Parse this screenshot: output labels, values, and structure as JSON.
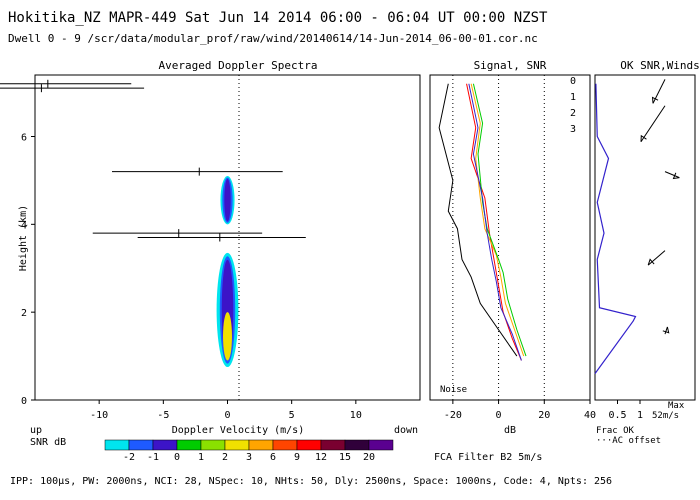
{
  "header": {
    "title": "Hokitika_NZ  MAPR-449  Sat Jun 14 2014 06:00 - 06:04 UT 00:00 NZST",
    "subtitle": "Dwell  0 - 9   /scr/data/modular_prof/raw/wind/20140614/14-Jun-2014_06-00-01.cor.nc"
  },
  "footer": {
    "params": "IPP: 100µs,  PW: 2000ns,  NCI: 28,  NSpec: 10, NHts: 50,  Dly: 2500ns,  Space: 1000ns,  Code: 4,  Npts: 256",
    "fca": "FCA Filter B2  5m/s"
  },
  "chart_data": [
    {
      "type": "heatmap",
      "panel": "spectra",
      "title": "Averaged Doppler Spectra",
      "xlabel": "Doppler Velocity (m/s)",
      "ylabel": "Height (km)",
      "xlim": [
        -15,
        15
      ],
      "ylim": [
        0,
        7.4
      ],
      "xticks": [
        -10,
        -5,
        0,
        5,
        10
      ],
      "yticks": [
        0,
        2,
        4,
        6
      ],
      "left_note": "up",
      "right_note": "down",
      "spectra_blobs": [
        {
          "center_height_km": 4.55,
          "half_height_km": 0.55,
          "layers": [
            [
              "#00e5ee",
              0.55
            ],
            [
              "#1e5aff",
              0.4
            ],
            [
              "#3c14c8",
              0.25
            ]
          ]
        },
        {
          "center_height_km": 2.05,
          "half_height_km": 1.3,
          "layers": [
            [
              "#00e5ee",
              0.85
            ],
            [
              "#1e5aff",
              0.6
            ],
            [
              "#3c14c8",
              0.45
            ]
          ]
        },
        {
          "center_height_km": 1.45,
          "half_height_km": 0.55,
          "layers": [
            [
              "#f0e000",
              0.35
            ]
          ]
        }
      ],
      "velocity_errorbars": [
        {
          "height_km": 5.2,
          "center": -2.2,
          "low": -9,
          "high": 4.3
        },
        {
          "height_km": 3.8,
          "center": -3.8,
          "low": -10.5,
          "high": 2.7
        },
        {
          "height_km": 3.7,
          "center": -0.6,
          "low": -7,
          "high": 6.1
        },
        {
          "height_km": 7.2,
          "center": -14,
          "low": -19,
          "high": -7.5
        },
        {
          "height_km": 7.1,
          "center": -14.5,
          "low": -19,
          "high": -6.5
        }
      ]
    },
    {
      "type": "line",
      "panel": "signal-snr",
      "title": "Signal, SNR",
      "xlabel": "dB",
      "xlim": [
        -30,
        40
      ],
      "xticks": [
        -20,
        0,
        20,
        40
      ],
      "ylim": [
        0,
        7.4
      ],
      "noise_label": "Noise",
      "series": [
        {
          "name": "0",
          "color": "#ff0000",
          "points": [
            [
              10,
              0.9
            ],
            [
              6,
              1.4
            ],
            [
              2,
              2.0
            ],
            [
              0,
              2.6
            ],
            [
              -2,
              3.2
            ],
            [
              -4,
              3.8
            ],
            [
              -6,
              4.6
            ],
            [
              -12,
              5.5
            ],
            [
              -10,
              6.2
            ],
            [
              -14,
              7.2
            ]
          ]
        },
        {
          "name": "1",
          "color": "#ffa500",
          "points": [
            [
              11,
              1.0
            ],
            [
              7,
              1.6
            ],
            [
              3,
              2.2
            ],
            [
              1,
              2.8
            ],
            [
              -1,
              3.3
            ],
            [
              -6,
              3.9
            ],
            [
              -8,
              4.6
            ],
            [
              -10,
              5.5
            ],
            [
              -8,
              6.3
            ],
            [
              -12,
              7.2
            ]
          ]
        },
        {
          "name": "2",
          "color": "#00cc00",
          "points": [
            [
              12,
              1.0
            ],
            [
              8,
              1.6
            ],
            [
              4,
              2.3
            ],
            [
              2,
              2.9
            ],
            [
              0,
              3.2
            ],
            [
              -5,
              3.9
            ],
            [
              -7,
              4.5
            ],
            [
              -9,
              5.6
            ],
            [
              -7,
              6.3
            ],
            [
              -11,
              7.2
            ]
          ]
        },
        {
          "name": "3",
          "color": "#3322cc",
          "points": [
            [
              10,
              0.9
            ],
            [
              6,
              1.5
            ],
            [
              1,
              2.1
            ],
            [
              -1,
              2.7
            ],
            [
              -3,
              3.2
            ],
            [
              -5,
              3.8
            ],
            [
              -7,
              4.6
            ],
            [
              -11,
              5.6
            ],
            [
              -9,
              6.2
            ],
            [
              -13,
              7.2
            ]
          ]
        },
        {
          "name": "signal",
          "color": "#000000",
          "points": [
            [
              8,
              1.0
            ],
            [
              0,
              1.6
            ],
            [
              -8,
              2.2
            ],
            [
              -12,
              2.8
            ],
            [
              -16,
              3.2
            ],
            [
              -18,
              3.9
            ],
            [
              -22,
              4.3
            ],
            [
              -20,
              5.0
            ],
            [
              -26,
              6.2
            ],
            [
              -22,
              7.2
            ]
          ]
        }
      ],
      "legend": [
        "0",
        "1",
        "2",
        "3"
      ]
    },
    {
      "type": "line",
      "panel": "ok-snr-winds",
      "title": "OK SNR,Winds",
      "xlabel": "Frac OK",
      "xlim": [
        0,
        1
      ],
      "xticks": [
        0.5,
        1
      ],
      "xtick_labels": [
        "0.5",
        "1"
      ],
      "ylim": [
        0,
        7.4
      ],
      "legend_note": "AC offset",
      "series": [
        {
          "name": "frac-ok",
          "color": "#3322cc",
          "points": [
            [
              0,
              0.6
            ],
            [
              0.85,
              1.8
            ],
            [
              0.9,
              1.9
            ],
            [
              0.1,
              2.1
            ],
            [
              0.05,
              3.2
            ],
            [
              0.2,
              3.8
            ],
            [
              0.05,
              4.5
            ],
            [
              0.3,
              5.5
            ],
            [
              0.05,
              6.0
            ],
            [
              0.02,
              7.2
            ]
          ]
        }
      ],
      "wind_max_label": "Max",
      "wind_max_value": "52m/s",
      "wind_vectors": [
        {
          "height_km": 7.3,
          "u": -10,
          "v": -20
        },
        {
          "height_km": 6.7,
          "u": -20,
          "v": -30
        },
        {
          "height_km": 5.2,
          "u": 12,
          "v": -5
        },
        {
          "height_km": 3.4,
          "u": -14,
          "v": -12
        },
        {
          "height_km": 1.5,
          "u": 2,
          "v": 6
        }
      ]
    }
  ],
  "colorbar": {
    "label": "SNR dB",
    "ticks": [
      "-2",
      "-1",
      "0",
      "1",
      "2",
      "3",
      "6",
      "9",
      "12",
      "15",
      "20"
    ],
    "colors": [
      "#00e5ee",
      "#1e5aff",
      "#3c14c8",
      "#00cc00",
      "#8ae000",
      "#f0e000",
      "#ffa500",
      "#ff4500",
      "#ff0000",
      "#7a0030",
      "#30003a",
      "#5a0090"
    ]
  }
}
